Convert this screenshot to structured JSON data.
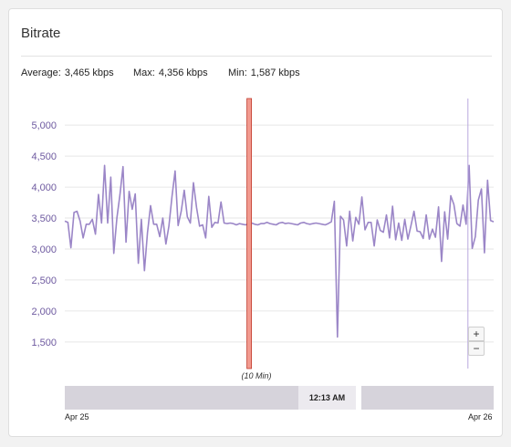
{
  "panel": {
    "title": "Bitrate"
  },
  "stats": {
    "average_label": "Average:",
    "average_value": "3,465 kbps",
    "max_label": "Max:",
    "max_value": "4,356 kbps",
    "min_label": "Min:",
    "min_value": "1,587 kbps"
  },
  "zoom": {
    "in_label": "+",
    "out_label": "−"
  },
  "timeline": {
    "span_label": "(10 Min)",
    "handle_label": "12:13 AM",
    "start_label": "Apr 25",
    "end_label": "Apr 26"
  },
  "colors": {
    "line": "#9b86c7",
    "tick_text": "#6e5aa0",
    "marker_fill": "#f29a8f",
    "marker_stroke": "#c0392b",
    "cursor": "#b9a8df"
  },
  "chart_data": {
    "type": "line",
    "title": "Bitrate",
    "ylim": [
      1100,
      5400
    ],
    "yticks": [
      1500,
      2000,
      2500,
      3000,
      3500,
      4000,
      4500,
      5000
    ],
    "ytick_labels": [
      "1,500",
      "2,000",
      "2,500",
      "3,000",
      "3,500",
      "4,000",
      "4,500",
      "5,000"
    ],
    "grid": true,
    "x_start_label": "Apr 25",
    "x_end_label": "Apr 26",
    "series": [
      {
        "values": [
          3450,
          3430,
          3020,
          3590,
          3610,
          3450,
          3180,
          3400,
          3400,
          3480,
          3240,
          3880,
          3420,
          4350,
          3420,
          4160,
          2930,
          3500,
          3870,
          4330,
          3110,
          3930,
          3640,
          3890,
          2770,
          3480,
          2650,
          3260,
          3700,
          3400,
          3400,
          3200,
          3500,
          3080,
          3370,
          3850,
          4260,
          3380,
          3610,
          3950,
          3520,
          3420,
          4070,
          3670,
          3370,
          3390,
          3180,
          3850,
          3350,
          3430,
          3420,
          3760,
          3420,
          3410,
          3420,
          3410,
          3390,
          3410,
          3400,
          3390,
          3410,
          3420,
          3400,
          3390,
          3410,
          3410,
          3430,
          3410,
          3400,
          3390,
          3420,
          3430,
          3410,
          3420,
          3410,
          3400,
          3390,
          3420,
          3430,
          3410,
          3400,
          3410,
          3420,
          3410,
          3400,
          3390,
          3410,
          3440,
          3770,
          1580,
          3530,
          3470,
          3050,
          3610,
          3130,
          3510,
          3400,
          3840,
          3310,
          3430,
          3430,
          3050,
          3470,
          3300,
          3270,
          3550,
          3180,
          3690,
          3150,
          3420,
          3140,
          3480,
          3160,
          3380,
          3610,
          3290,
          3280,
          3170,
          3550,
          3160,
          3320,
          3190,
          3680,
          2800,
          3600,
          3160,
          3860,
          3720,
          3410,
          3370,
          3710,
          3400,
          4350,
          3010,
          3200,
          3790,
          3970,
          2940,
          4110,
          3460,
          3440
        ]
      }
    ],
    "annotations": [
      {
        "type": "vertical_band",
        "at_fraction": 0.43
      },
      {
        "type": "vertical_cursor",
        "at_fraction": 0.94
      }
    ]
  }
}
